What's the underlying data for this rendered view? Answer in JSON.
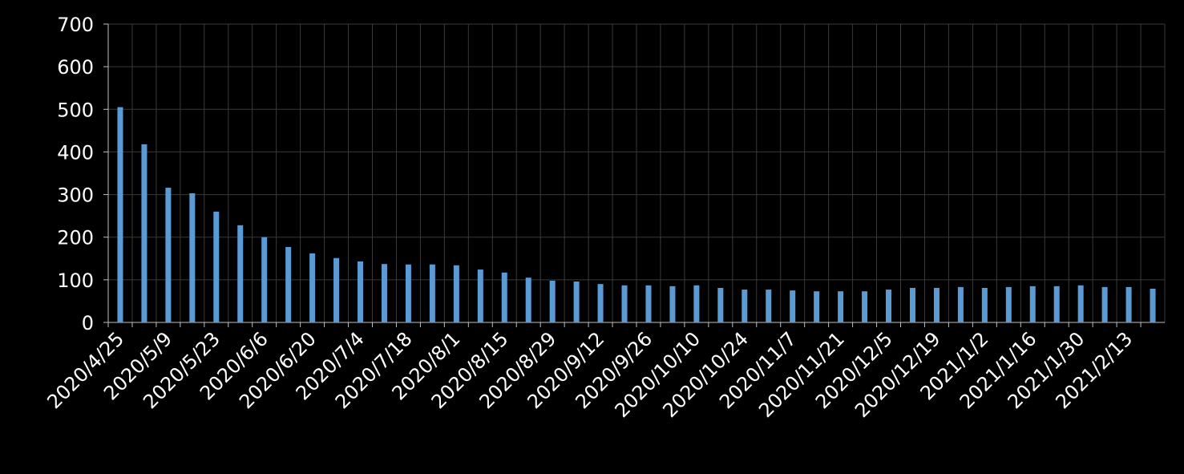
{
  "chart_data": {
    "type": "bar",
    "categories": [
      "2020/4/25",
      null,
      "2020/5/9",
      null,
      "2020/5/23",
      null,
      "2020/6/6",
      null,
      "2020/6/20",
      null,
      "2020/7/4",
      null,
      "2020/7/18",
      null,
      "2020/8/1",
      null,
      "2020/8/15",
      null,
      "2020/8/29",
      null,
      "2020/9/12",
      null,
      "2020/9/26",
      null,
      "2020/10/10",
      null,
      "2020/10/24",
      null,
      "2020/11/7",
      null,
      "2020/11/21",
      null,
      "2020/12/5",
      null,
      "2020/12/19",
      null,
      "2021/1/2",
      null,
      "2021/1/16",
      null,
      "2021/1/30",
      null,
      "2021/2/13",
      null
    ],
    "values": [
      505,
      418,
      316,
      303,
      260,
      228,
      200,
      177,
      162,
      151,
      143,
      137,
      136,
      136,
      134,
      124,
      117,
      105,
      98,
      96,
      90,
      87,
      87,
      85,
      87,
      81,
      77,
      77,
      75,
      73,
      73,
      73,
      77,
      81,
      81,
      83,
      81,
      83,
      85,
      85,
      87,
      83,
      83,
      79
    ],
    "color": "#5b9bd5",
    "ylim": [
      0,
      700
    ],
    "yticks": [
      0,
      100,
      200,
      300,
      400,
      500,
      600,
      700
    ],
    "grid": true
  }
}
